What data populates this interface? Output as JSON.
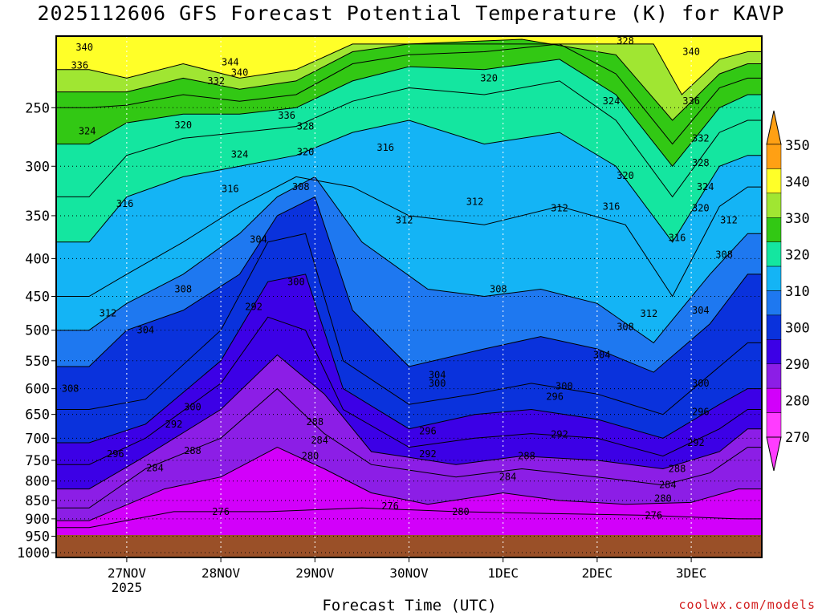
{
  "chart_data": {
    "type": "heatmap",
    "title": "2025112606 GFS Forecast Potential Temperature (K) for KAVP",
    "xlabel": "Forecast Time (UTC)",
    "ylabel": "",
    "x_ticks": [
      {
        "label": "27NOV",
        "sub": "2025",
        "t": 1.0
      },
      {
        "label": "28NOV",
        "sub": "",
        "t": 2.0
      },
      {
        "label": "29NOV",
        "sub": "",
        "t": 3.0
      },
      {
        "label": "30NOV",
        "sub": "",
        "t": 4.0
      },
      {
        "label": "1DEC",
        "sub": "",
        "t": 5.0
      },
      {
        "label": "2DEC",
        "sub": "",
        "t": 6.0
      },
      {
        "label": "3DEC",
        "sub": "",
        "t": 7.0
      }
    ],
    "xlim": [
      0.25,
      7.75
    ],
    "y_ticks": [
      250,
      300,
      350,
      400,
      450,
      500,
      550,
      600,
      650,
      700,
      750,
      800,
      850,
      900,
      950,
      1000
    ],
    "ylim": [
      1015,
      200
    ],
    "colorbar": {
      "levels": [
        270,
        280,
        290,
        300,
        310,
        320,
        330,
        340,
        350
      ],
      "colors": [
        "#ff3cff",
        "#d200fa",
        "#8c1ee6",
        "#3c00e6",
        "#0a32dc",
        "#1e78f0",
        "#14b4f5",
        "#14e6a0",
        "#32c814",
        "#a0e632",
        "#ffff28",
        "#ffa014"
      ]
    },
    "series": [
      {
        "name": "276",
        "values": [
          [
            0.6,
            925
          ],
          [
            1.5,
            880
          ],
          [
            2.5,
            880
          ],
          [
            3.5,
            870
          ],
          [
            4.5,
            880
          ],
          [
            5.5,
            885
          ],
          [
            6.5,
            890
          ],
          [
            7.5,
            900
          ]
        ]
      },
      {
        "name": "280",
        "values": [
          [
            0.6,
            905
          ],
          [
            1.4,
            820
          ],
          [
            2.0,
            790
          ],
          [
            2.6,
            720
          ],
          [
            3.1,
            770
          ],
          [
            3.6,
            830
          ],
          [
            4.2,
            860
          ],
          [
            5.0,
            830
          ],
          [
            5.6,
            850
          ],
          [
            6.3,
            860
          ],
          [
            7.0,
            855
          ],
          [
            7.5,
            820
          ]
        ]
      },
      {
        "name": "284",
        "values": [
          [
            0.6,
            870
          ],
          [
            1.2,
            770
          ],
          [
            2.0,
            700
          ],
          [
            2.6,
            600
          ],
          [
            3.1,
            690
          ],
          [
            3.6,
            760
          ],
          [
            4.5,
            790
          ],
          [
            5.2,
            770
          ],
          [
            6.0,
            790
          ],
          [
            6.7,
            810
          ],
          [
            7.2,
            780
          ],
          [
            7.6,
            720
          ]
        ]
      },
      {
        "name": "288",
        "values": [
          [
            0.6,
            820
          ],
          [
            1.2,
            740
          ],
          [
            2.0,
            640
          ],
          [
            2.6,
            540
          ],
          [
            3.1,
            610
          ],
          [
            3.6,
            730
          ],
          [
            4.5,
            760
          ],
          [
            5.2,
            740
          ],
          [
            6.0,
            750
          ],
          [
            6.7,
            770
          ],
          [
            7.3,
            730
          ],
          [
            7.6,
            680
          ]
        ]
      },
      {
        "name": "292",
        "values": [
          [
            0.6,
            760
          ],
          [
            1.2,
            700
          ],
          [
            2.0,
            590
          ],
          [
            2.5,
            480
          ],
          [
            2.9,
            500
          ],
          [
            3.3,
            640
          ],
          [
            4.0,
            720
          ],
          [
            4.7,
            700
          ],
          [
            5.3,
            690
          ],
          [
            6.0,
            700
          ],
          [
            6.7,
            740
          ],
          [
            7.3,
            680
          ],
          [
            7.6,
            640
          ]
        ]
      },
      {
        "name": "296",
        "values": [
          [
            0.6,
            710
          ],
          [
            1.2,
            670
          ],
          [
            2.0,
            550
          ],
          [
            2.5,
            430
          ],
          [
            2.9,
            420
          ],
          [
            3.3,
            600
          ],
          [
            4.0,
            680
          ],
          [
            4.7,
            650
          ],
          [
            5.3,
            640
          ],
          [
            6.0,
            660
          ],
          [
            6.7,
            700
          ],
          [
            7.3,
            630
          ],
          [
            7.6,
            600
          ]
        ]
      },
      {
        "name": "300",
        "values": [
          [
            0.6,
            640
          ],
          [
            1.2,
            620
          ],
          [
            2.0,
            500
          ],
          [
            2.5,
            380
          ],
          [
            2.9,
            370
          ],
          [
            3.3,
            550
          ],
          [
            4.0,
            630
          ],
          [
            4.7,
            610
          ],
          [
            5.3,
            590
          ],
          [
            6.0,
            610
          ],
          [
            6.7,
            650
          ],
          [
            7.3,
            560
          ],
          [
            7.6,
            520
          ]
        ]
      },
      {
        "name": "304",
        "values": [
          [
            0.6,
            560
          ],
          [
            1.0,
            500
          ],
          [
            1.6,
            470
          ],
          [
            2.2,
            420
          ],
          [
            2.6,
            350
          ],
          [
            3.0,
            330
          ],
          [
            3.4,
            470
          ],
          [
            4.0,
            560
          ],
          [
            4.8,
            530
          ],
          [
            5.4,
            510
          ],
          [
            6.0,
            530
          ],
          [
            6.6,
            570
          ],
          [
            7.2,
            490
          ],
          [
            7.6,
            420
          ]
        ]
      },
      {
        "name": "308",
        "values": [
          [
            0.6,
            500
          ],
          [
            1.0,
            460
          ],
          [
            1.6,
            420
          ],
          [
            2.2,
            370
          ],
          [
            2.6,
            330
          ],
          [
            3.0,
            310
          ],
          [
            3.5,
            380
          ],
          [
            4.2,
            440
          ],
          [
            4.8,
            450
          ],
          [
            5.4,
            440
          ],
          [
            6.0,
            460
          ],
          [
            6.6,
            520
          ],
          [
            7.2,
            420
          ],
          [
            7.6,
            370
          ]
        ]
      },
      {
        "name": "312",
        "values": [
          [
            0.6,
            450
          ],
          [
            1.0,
            420
          ],
          [
            1.6,
            380
          ],
          [
            2.2,
            340
          ],
          [
            2.8,
            310
          ],
          [
            3.4,
            320
          ],
          [
            4.0,
            350
          ],
          [
            4.8,
            360
          ],
          [
            5.6,
            340
          ],
          [
            6.3,
            360
          ],
          [
            6.8,
            450
          ],
          [
            7.3,
            340
          ],
          [
            7.6,
            320
          ]
        ]
      },
      {
        "name": "316",
        "values": [
          [
            0.6,
            380
          ],
          [
            1.0,
            330
          ],
          [
            1.6,
            310
          ],
          [
            2.2,
            300
          ],
          [
            2.8,
            290
          ],
          [
            3.4,
            270
          ],
          [
            4.0,
            260
          ],
          [
            4.8,
            280
          ],
          [
            5.6,
            270
          ],
          [
            6.2,
            300
          ],
          [
            6.8,
            380
          ],
          [
            7.3,
            300
          ],
          [
            7.6,
            290
          ]
        ]
      },
      {
        "name": "320",
        "values": [
          [
            0.6,
            330
          ],
          [
            1.0,
            290
          ],
          [
            1.6,
            275
          ],
          [
            2.2,
            270
          ],
          [
            2.8,
            265
          ],
          [
            3.4,
            245
          ],
          [
            4.0,
            235
          ],
          [
            4.8,
            240
          ],
          [
            5.6,
            230
          ],
          [
            6.2,
            260
          ],
          [
            6.8,
            330
          ],
          [
            7.3,
            270
          ],
          [
            7.6,
            260
          ]
        ]
      },
      {
        "name": "324",
        "values": [
          [
            0.6,
            280
          ],
          [
            1.0,
            262
          ],
          [
            1.6,
            255
          ],
          [
            2.2,
            255
          ],
          [
            2.8,
            250
          ],
          [
            3.4,
            230
          ],
          [
            4.0,
            220
          ],
          [
            4.8,
            222
          ],
          [
            5.6,
            215
          ],
          [
            6.2,
            240
          ],
          [
            6.8,
            300
          ],
          [
            7.3,
            250
          ],
          [
            7.6,
            240
          ]
        ]
      },
      {
        "name": "328",
        "values": [
          [
            0.6,
            250
          ],
          [
            1.0,
            248
          ],
          [
            1.6,
            240
          ],
          [
            2.2,
            245
          ],
          [
            2.8,
            240
          ],
          [
            3.4,
            218
          ],
          [
            4.0,
            212
          ],
          [
            4.8,
            210
          ],
          [
            5.6,
            205
          ],
          [
            6.2,
            225
          ],
          [
            6.8,
            280
          ],
          [
            7.3,
            235
          ],
          [
            7.6,
            228
          ]
        ]
      },
      {
        "name": "332",
        "values": [
          [
            0.6,
            238
          ],
          [
            1.0,
            238
          ],
          [
            1.6,
            228
          ],
          [
            2.2,
            236
          ],
          [
            2.8,
            230
          ],
          [
            3.4,
            210
          ],
          [
            4.0,
            205
          ],
          [
            5.2,
            202
          ],
          [
            6.2,
            212
          ],
          [
            6.8,
            260
          ],
          [
            7.3,
            225
          ],
          [
            7.6,
            218
          ]
        ]
      },
      {
        "name": "336",
        "values": [
          [
            0.6,
            222
          ],
          [
            1.0,
            228
          ],
          [
            1.6,
            218
          ],
          [
            2.2,
            228
          ],
          [
            2.8,
            222
          ],
          [
            3.4,
            205
          ],
          [
            6.6,
            205
          ],
          [
            6.9,
            240
          ],
          [
            7.3,
            215
          ],
          [
            7.6,
            210
          ]
        ]
      }
    ],
    "labels": [
      {
        "text": "340",
        "t": 0.55,
        "p": 207
      },
      {
        "text": "336",
        "t": 0.5,
        "p": 219
      },
      {
        "text": "324",
        "t": 0.58,
        "p": 269
      },
      {
        "text": "316",
        "t": 0.98,
        "p": 337
      },
      {
        "text": "312",
        "t": 0.8,
        "p": 474
      },
      {
        "text": "304",
        "t": 1.2,
        "p": 500
      },
      {
        "text": "308",
        "t": 0.4,
        "p": 600
      },
      {
        "text": "296",
        "t": 0.88,
        "p": 735
      },
      {
        "text": "284",
        "t": 1.3,
        "p": 768
      },
      {
        "text": "288",
        "t": 1.7,
        "p": 728
      },
      {
        "text": "292",
        "t": 1.5,
        "p": 670
      },
      {
        "text": "300",
        "t": 1.7,
        "p": 635
      },
      {
        "text": "320",
        "t": 1.6,
        "p": 264
      },
      {
        "text": "332",
        "t": 1.95,
        "p": 230
      },
      {
        "text": "344",
        "t": 2.1,
        "p": 217
      },
      {
        "text": "340",
        "t": 2.2,
        "p": 224
      },
      {
        "text": "324",
        "t": 2.2,
        "p": 289
      },
      {
        "text": "316",
        "t": 2.1,
        "p": 322
      },
      {
        "text": "308",
        "t": 1.6,
        "p": 440
      },
      {
        "text": "336",
        "t": 2.7,
        "p": 256
      },
      {
        "text": "328",
        "t": 2.9,
        "p": 265
      },
      {
        "text": "320",
        "t": 2.9,
        "p": 287
      },
      {
        "text": "308",
        "t": 2.85,
        "p": 320
      },
      {
        "text": "304",
        "t": 2.4,
        "p": 377
      },
      {
        "text": "300",
        "t": 2.8,
        "p": 430
      },
      {
        "text": "292",
        "t": 2.35,
        "p": 465
      },
      {
        "text": "288",
        "t": 3.0,
        "p": 665
      },
      {
        "text": "284",
        "t": 3.05,
        "p": 705
      },
      {
        "text": "280",
        "t": 2.95,
        "p": 740
      },
      {
        "text": "276",
        "t": 2.0,
        "p": 880
      },
      {
        "text": "316",
        "t": 3.75,
        "p": 283
      },
      {
        "text": "312",
        "t": 3.95,
        "p": 355
      },
      {
        "text": "320",
        "t": 4.85,
        "p": 228
      },
      {
        "text": "312",
        "t": 4.7,
        "p": 335
      },
      {
        "text": "308",
        "t": 4.95,
        "p": 440
      },
      {
        "text": "304",
        "t": 4.3,
        "p": 575
      },
      {
        "text": "300",
        "t": 4.3,
        "p": 590
      },
      {
        "text": "296",
        "t": 4.2,
        "p": 685
      },
      {
        "text": "292",
        "t": 4.2,
        "p": 735
      },
      {
        "text": "276",
        "t": 3.8,
        "p": 865
      },
      {
        "text": "280",
        "t": 4.55,
        "p": 880
      },
      {
        "text": "284",
        "t": 5.05,
        "p": 790
      },
      {
        "text": "288",
        "t": 5.25,
        "p": 740
      },
      {
        "text": "292",
        "t": 5.6,
        "p": 692
      },
      {
        "text": "296",
        "t": 5.55,
        "p": 615
      },
      {
        "text": "300",
        "t": 5.65,
        "p": 595
      },
      {
        "text": "304",
        "t": 6.05,
        "p": 540
      },
      {
        "text": "308",
        "t": 6.3,
        "p": 495
      },
      {
        "text": "312",
        "t": 5.6,
        "p": 342
      },
      {
        "text": "316",
        "t": 6.15,
        "p": 340
      },
      {
        "text": "320",
        "t": 6.3,
        "p": 309
      },
      {
        "text": "324",
        "t": 6.15,
        "p": 245
      },
      {
        "text": "328",
        "t": 6.3,
        "p": 203
      },
      {
        "text": "340",
        "t": 7.0,
        "p": 210
      },
      {
        "text": "336",
        "t": 7.0,
        "p": 245
      },
      {
        "text": "332",
        "t": 7.1,
        "p": 275
      },
      {
        "text": "328",
        "t": 7.1,
        "p": 297
      },
      {
        "text": "324",
        "t": 7.15,
        "p": 320
      },
      {
        "text": "320",
        "t": 7.1,
        "p": 342
      },
      {
        "text": "312",
        "t": 7.4,
        "p": 355
      },
      {
        "text": "316",
        "t": 6.85,
        "p": 375
      },
      {
        "text": "308",
        "t": 7.35,
        "p": 395
      },
      {
        "text": "312",
        "t": 6.55,
        "p": 475
      },
      {
        "text": "304",
        "t": 7.1,
        "p": 470
      },
      {
        "text": "300",
        "t": 7.1,
        "p": 590
      },
      {
        "text": "296",
        "t": 7.1,
        "p": 645
      },
      {
        "text": "292",
        "t": 7.05,
        "p": 710
      },
      {
        "text": "288",
        "t": 6.85,
        "p": 770
      },
      {
        "text": "284",
        "t": 6.75,
        "p": 810
      },
      {
        "text": "280",
        "t": 6.7,
        "p": 845
      },
      {
        "text": "276",
        "t": 6.6,
        "p": 890
      }
    ],
    "credit": "coolwx.com/models"
  }
}
